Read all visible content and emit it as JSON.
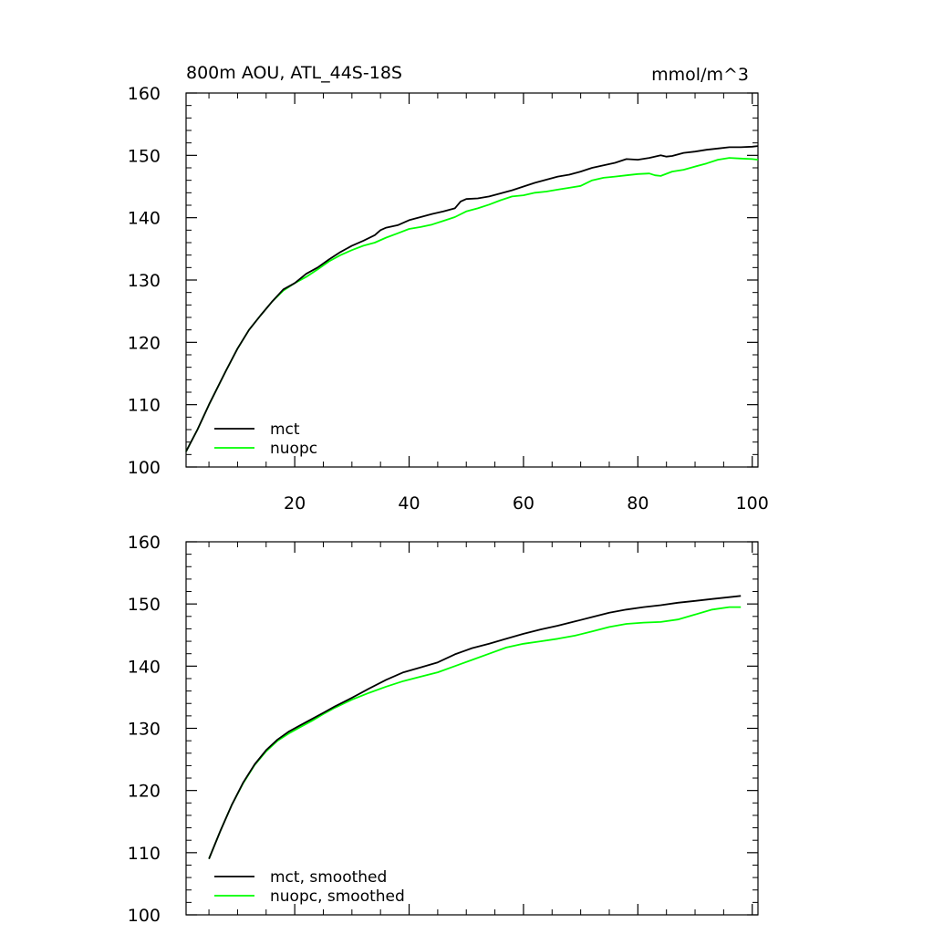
{
  "chart_data": [
    {
      "type": "line",
      "title": "800m AOU, ATL_44S-18S",
      "units": "mmol/m^3",
      "xlim": [
        1,
        101
      ],
      "ylim": [
        100,
        160
      ],
      "x_ticks": [
        20,
        40,
        60,
        80,
        100
      ],
      "y_ticks": [
        100,
        110,
        120,
        130,
        140,
        150,
        160
      ],
      "legend_position": "bottom-left",
      "series": [
        {
          "name": "mct",
          "color": "#000000",
          "x": [
            1,
            3,
            5,
            8,
            10,
            12,
            14,
            16,
            18,
            20,
            22,
            24,
            26,
            28,
            30,
            32,
            34,
            35,
            36,
            38,
            40,
            42,
            44,
            46,
            48,
            49,
            50,
            52,
            54,
            56,
            58,
            60,
            62,
            64,
            66,
            68,
            70,
            72,
            74,
            76,
            78,
            80,
            82,
            84,
            85,
            86,
            88,
            90,
            92,
            94,
            96,
            98,
            100,
            101
          ],
          "y": [
            102.5,
            106.0,
            110.0,
            115.5,
            119.0,
            122.0,
            124.3,
            126.5,
            128.5,
            129.5,
            131.0,
            132.0,
            133.3,
            134.5,
            135.5,
            136.3,
            137.2,
            138.0,
            138.4,
            138.8,
            139.6,
            140.1,
            140.6,
            141.0,
            141.5,
            142.6,
            143.0,
            143.1,
            143.4,
            143.9,
            144.4,
            145.0,
            145.6,
            146.1,
            146.6,
            146.9,
            147.4,
            148.0,
            148.4,
            148.8,
            149.4,
            149.3,
            149.6,
            150.0,
            149.8,
            149.9,
            150.4,
            150.6,
            150.9,
            151.1,
            151.3,
            151.3,
            151.4,
            151.5
          ]
        },
        {
          "name": "nuopc",
          "color": "#00ff00",
          "x": [
            1,
            3,
            5,
            8,
            10,
            12,
            14,
            16,
            18,
            20,
            22,
            24,
            26,
            28,
            30,
            32,
            34,
            36,
            38,
            40,
            42,
            44,
            46,
            48,
            50,
            52,
            54,
            56,
            58,
            60,
            62,
            64,
            66,
            68,
            70,
            72,
            74,
            76,
            78,
            80,
            82,
            83,
            84,
            86,
            88,
            90,
            92,
            94,
            96,
            98,
            100,
            101
          ],
          "y": [
            102.5,
            106.0,
            110.0,
            115.5,
            119.0,
            122.0,
            124.3,
            126.5,
            128.3,
            129.5,
            130.5,
            131.7,
            133.0,
            134.0,
            134.8,
            135.5,
            136.0,
            136.8,
            137.5,
            138.2,
            138.5,
            138.9,
            139.5,
            140.1,
            141.0,
            141.5,
            142.1,
            142.8,
            143.4,
            143.6,
            144.0,
            144.2,
            144.5,
            144.8,
            145.1,
            146.0,
            146.4,
            146.6,
            146.8,
            147.0,
            147.1,
            146.8,
            146.7,
            147.4,
            147.7,
            148.2,
            148.7,
            149.3,
            149.6,
            149.5,
            149.4,
            149.3
          ]
        }
      ]
    },
    {
      "type": "line",
      "xlim": [
        1,
        101
      ],
      "ylim": [
        100,
        160
      ],
      "x_ticks": [
        20,
        40,
        60,
        80,
        100
      ],
      "x_tick_labels_shown": false,
      "y_ticks": [
        100,
        110,
        120,
        130,
        140,
        150,
        160
      ],
      "legend_position": "bottom-left",
      "series": [
        {
          "name": "mct, smoothed",
          "color": "#000000",
          "x": [
            5,
            7,
            9,
            11,
            13,
            15,
            17,
            19,
            21,
            23,
            25,
            27,
            30,
            33,
            36,
            39,
            42,
            45,
            48,
            51,
            54,
            57,
            60,
            63,
            66,
            69,
            72,
            75,
            78,
            81,
            84,
            87,
            90,
            93,
            96,
            98
          ],
          "y": [
            109.0,
            113.5,
            117.7,
            121.3,
            124.2,
            126.5,
            128.2,
            129.5,
            130.5,
            131.5,
            132.5,
            133.5,
            134.9,
            136.4,
            137.8,
            139.0,
            139.8,
            140.6,
            141.9,
            142.9,
            143.6,
            144.4,
            145.2,
            145.9,
            146.5,
            147.2,
            147.9,
            148.6,
            149.1,
            149.5,
            149.8,
            150.2,
            150.5,
            150.8,
            151.1,
            151.3
          ]
        },
        {
          "name": "nuopc, smoothed",
          "color": "#00ff00",
          "x": [
            5,
            7,
            9,
            11,
            13,
            15,
            17,
            19,
            21,
            23,
            25,
            27,
            30,
            33,
            36,
            39,
            42,
            45,
            48,
            51,
            54,
            57,
            60,
            63,
            66,
            69,
            72,
            75,
            78,
            81,
            84,
            87,
            90,
            93,
            96,
            98
          ],
          "y": [
            109.0,
            113.5,
            117.7,
            121.2,
            124.1,
            126.3,
            128.0,
            129.2,
            130.2,
            131.2,
            132.3,
            133.3,
            134.6,
            135.7,
            136.7,
            137.6,
            138.3,
            139.0,
            140.0,
            141.0,
            142.0,
            143.0,
            143.6,
            144.0,
            144.4,
            144.9,
            145.6,
            146.3,
            146.8,
            147.0,
            147.1,
            147.5,
            148.3,
            149.1,
            149.5,
            149.5
          ]
        }
      ]
    }
  ]
}
